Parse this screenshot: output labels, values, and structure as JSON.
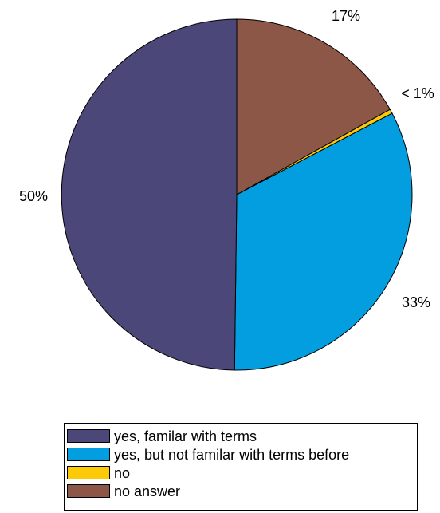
{
  "chart_data": {
    "type": "pie",
    "categories": [
      "yes, familar with terms",
      "yes, but not familar with terms before",
      "no",
      "no answer"
    ],
    "values": [
      50,
      33,
      0.4,
      17
    ],
    "data_labels": [
      "50%",
      "33%",
      "< 1%",
      "17%"
    ],
    "colors": [
      "#4b4778",
      "#039ee0",
      "#fcca06",
      "#8c5746"
    ],
    "legend": "bottom",
    "title": ""
  },
  "legend": {
    "items": [
      {
        "label": "yes, familar with terms",
        "color": "#4b4778"
      },
      {
        "label": "yes, but not familar with terms before",
        "color": "#039ee0"
      },
      {
        "label": "no",
        "color": "#fcca06"
      },
      {
        "label": "no answer",
        "color": "#8c5746"
      }
    ]
  }
}
